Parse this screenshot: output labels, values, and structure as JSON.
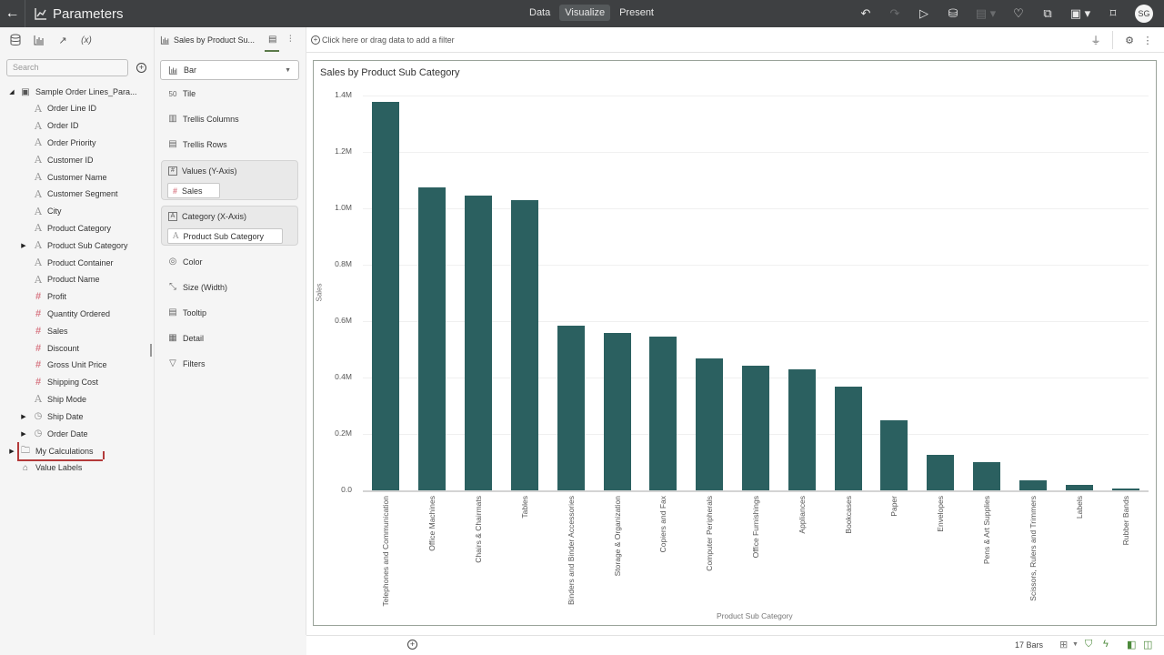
{
  "topbar": {
    "back_icon": "arrow-left-icon",
    "title": "Parameters",
    "modes": [
      {
        "label": "Data",
        "active": false
      },
      {
        "label": "Visualize",
        "active": true
      },
      {
        "label": "Present",
        "active": false
      }
    ],
    "actions": [
      "undo-icon",
      "redo-icon",
      "play-icon",
      "data-refresh-icon",
      "comment-icon",
      "insights-icon",
      "export-icon",
      "save-icon",
      "bookmark-icon"
    ],
    "user_initials": "SG"
  },
  "left_panel": {
    "tabs": [
      "data-icon",
      "visualizations-icon",
      "analytics-icon",
      "(x)"
    ],
    "search_placeholder": "Search",
    "dataset": "Sample Order Lines_Para...",
    "fields": [
      {
        "label": "Order Line ID",
        "type": "attribute"
      },
      {
        "label": "Order ID",
        "type": "attribute"
      },
      {
        "label": "Order Priority",
        "type": "attribute"
      },
      {
        "label": "Customer ID",
        "type": "attribute"
      },
      {
        "label": "Customer Name",
        "type": "attribute"
      },
      {
        "label": "Customer Segment",
        "type": "attribute"
      },
      {
        "label": "City",
        "type": "attribute"
      },
      {
        "label": "Product Category",
        "type": "attribute"
      },
      {
        "label": "Product Sub Category",
        "type": "attribute",
        "expandable": true
      },
      {
        "label": "Product Container",
        "type": "attribute"
      },
      {
        "label": "Product Name",
        "type": "attribute"
      },
      {
        "label": "Profit",
        "type": "measure"
      },
      {
        "label": "Quantity Ordered",
        "type": "measure"
      },
      {
        "label": "Sales",
        "type": "measure"
      },
      {
        "label": "Discount",
        "type": "measure"
      },
      {
        "label": "Gross Unit Price",
        "type": "measure"
      },
      {
        "label": "Shipping Cost",
        "type": "measure"
      },
      {
        "label": "Ship Mode",
        "type": "attribute"
      },
      {
        "label": "Ship Date",
        "type": "time",
        "expandable": true
      },
      {
        "label": "Order Date",
        "type": "time",
        "expandable": true
      }
    ],
    "my_calculations": "My Calculations",
    "value_labels": "Value Labels"
  },
  "grammar_panel": {
    "viz_name": "Sales by Product Su...",
    "chart_type": "Bar",
    "tile": "Tile",
    "trellis_columns": "Trellis Columns",
    "trellis_rows": "Trellis Rows",
    "values_title": "Values (Y-Axis)",
    "values_pill": "Sales",
    "category_title": "Category (X-Axis)",
    "category_pill": "Product Sub Category",
    "color": "Color",
    "size": "Size (Width)",
    "tooltip": "Tooltip",
    "detail": "Detail",
    "filters": "Filters"
  },
  "filter_bar": {
    "placeholder": "Click here or drag data to add a filter"
  },
  "bottom_bar": {
    "count": "17 Bars"
  },
  "chart_data": {
    "type": "bar",
    "title": "Sales by Product Sub Category",
    "xlabel": "Product Sub Category",
    "ylabel": "Sales",
    "ylim": [
      0,
      1400000
    ],
    "yticks": [
      "0.0",
      "0.2M",
      "0.4M",
      "0.6M",
      "0.8M",
      "1.0M",
      "1.2M",
      "1.4M"
    ],
    "grid": true,
    "bar_color": "#2b6060",
    "categories": [
      "Telephones and Communication",
      "Office Machines",
      "Chairs & Chairmats",
      "Tables",
      "Binders and Binder Accessories",
      "Storage & Organization",
      "Copiers and Fax",
      "Computer Peripherals",
      "Office Furnishings",
      "Appliances",
      "Bookcases",
      "Paper",
      "Envelopes",
      "Pens & Art Supplies",
      "Scissors, Rulers and Trimmers",
      "Labels",
      "Rubber Bands"
    ],
    "values": [
      1377000,
      1074000,
      1045000,
      1029000,
      584000,
      558000,
      545000,
      468000,
      442000,
      429000,
      368000,
      248000,
      126000,
      100000,
      35000,
      19000,
      6000
    ]
  }
}
